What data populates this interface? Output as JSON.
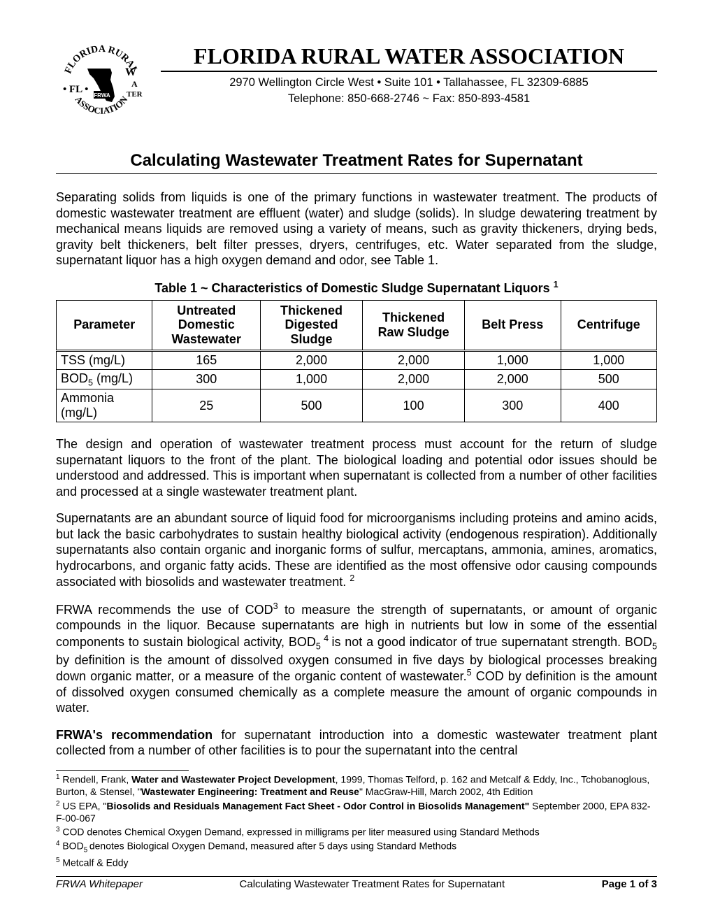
{
  "org": {
    "name": "FLORIDA RURAL WATER ASSOCIATION",
    "address": "2970 Wellington Circle West • Suite 101 • Tallahassee, FL 32309-6885",
    "phone": "Telephone: 850-668-2746 ~ Fax: 850-893-4581",
    "logo_arc_top": "FLORIDA RURAL",
    "logo_arc_bottom": "ASSOCIATION",
    "logo_side_left": "W",
    "logo_side_right": "A",
    "logo_side_left2": "FL •",
    "logo_side_right2": "TER",
    "logo_center": "FRWA"
  },
  "doc_title": "Calculating Wastewater Treatment Rates for Supernatant",
  "paragraphs": {
    "p1": "Separating solids from liquids is one of the primary functions in wastewater treatment. The products of domestic wastewater treatment are effluent (water) and sludge (solids). In sludge dewatering treatment by mechanical means liquids are removed using a variety of means, such as gravity thickeners, drying beds, gravity belt thickeners, belt filter presses, dryers, centrifuges, etc. Water separated from the sludge, supernatant liquor has a high oxygen demand and odor, see Table 1.",
    "p2": "The design and operation of wastewater treatment process must account for the return of sludge supernatant liquors to the front of the plant. The biological loading and potential odor issues should be understood and addressed. This is important when supernatant is collected from a number of other facilities and processed at a single wastewater treatment plant.",
    "p3": "Supernatants are an abundant source of liquid food for microorganisms including proteins and amino acids, but lack the basic carbohydrates to sustain healthy biological activity (endogenous respiration). Additionally supernatants also contain organic and inorganic forms of sulfur, mercaptans, ammonia, amines, aromatics, hydrocarbons, and organic fatty acids. These are identified as the most offensive odor causing compounds associated with biosolids and wastewater treatment.",
    "p4a": "FRWA recommends the use of COD",
    "p4b": " to measure the strength of supernatants, or amount of organic compounds in the liquor. Because supernatants are high in nutrients but low in some of the essential components to sustain biological activity, BOD",
    "p4c": " is not a good indicator of true supernatant strength. BOD",
    "p4d": " by definition is the amount of dissolved oxygen consumed in five days by biological processes breaking down organic matter, or a measure of the organic content of wastewater.",
    "p4e": " COD by definition is the amount of dissolved oxygen consumed chemically as a complete measure the amount of organic compounds in water.",
    "p5a": "FRWA's recommendation",
    "p5b": " for supernatant introduction into a domestic wastewater treatment plant collected from a number of other facilities is to pour the supernatant into the central"
  },
  "table1": {
    "caption_prefix": "Table 1 ~ Characteristics of Domestic Sludge Supernatant Liquors ",
    "caption_sup": "1",
    "columns": [
      "Parameter",
      "Untreated Domestic Wastewater",
      "Thickened Digested Sludge",
      "Thickened Raw Sludge",
      "Belt Press",
      "Centrifuge"
    ],
    "rows": [
      {
        "label_plain": "TSS (mg/L)",
        "label_html": "TSS (mg/L)",
        "values": [
          "165",
          "2,000",
          "2,000",
          "1,000",
          "1,000"
        ]
      },
      {
        "label_plain": "BOD5 (mg/L)",
        "label_html": "BOD<sub>5</sub> (mg/L)",
        "values": [
          "300",
          "1,000",
          "2,000",
          "2,000",
          "500"
        ]
      },
      {
        "label_plain": "Ammonia (mg/L)",
        "label_html": "Ammonia (mg/L)",
        "values": [
          "25",
          "500",
          "100",
          "300",
          "400"
        ]
      }
    ],
    "col_widths": [
      "16%",
      "18%",
      "17%",
      "17%",
      "16%",
      "16%"
    ]
  },
  "footnotes": {
    "f1a": " Rendell, Frank, ",
    "f1b": "Water and Wastewater Project Development",
    "f1c": ", 1999, Thomas Telford, p. 162 and Metcalf & Eddy, Inc., Tchobanoglous, Burton, & Stensel, \"",
    "f1d": "Wastewater Engineering: Treatment and Reuse",
    "f1e": "\" MacGraw-Hill, March 2002, 4th Edition",
    "f2a": " US EPA, \"",
    "f2b": "Biosolids and Residuals Management Fact Sheet - Odor Control in Biosolids Management\"",
    "f2c": " September 2000, EPA 832-F-00-067",
    "f3": " COD denotes Chemical Oxygen Demand, expressed in milligrams per liter measured using Standard Methods",
    "f4": " BOD5 denotes Biological Oxygen Demand, measured after 5 days using Standard Methods",
    "f5": " Metcalf & Eddy"
  },
  "footer": {
    "left": "FRWA Whitepaper",
    "center": "Calculating Wastewater Treatment Rates for Supernatant",
    "right_prefix": "Page ",
    "right_num": "1 of 3"
  },
  "colors": {
    "text": "#000000",
    "bg": "#ffffff",
    "rule": "#000000"
  }
}
